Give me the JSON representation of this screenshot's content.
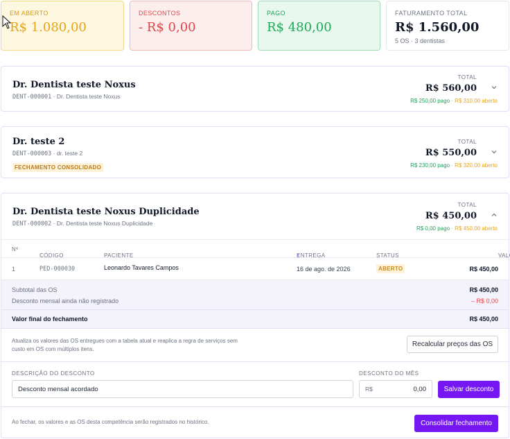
{
  "summary": {
    "open": {
      "label": "EM ABERTO",
      "value": "R$ 1.080,00"
    },
    "discounts": {
      "label": "DESCONTOS",
      "value": "- R$ 0,00"
    },
    "paid": {
      "label": "PAGO",
      "value": "R$ 480,00"
    },
    "total": {
      "label": "FATURAMENTO TOTAL",
      "value": "R$ 1.560,00",
      "sub": "5 OS · 3 dentistas"
    }
  },
  "dentists": [
    {
      "name": "Dr. Dentista teste Noxus",
      "code": "DENT-000001",
      "subname": "· Dr. Dentista teste Noxus",
      "total_label": "TOTAL",
      "total": "R$ 560,00",
      "paid": "R$ 250,00 pago",
      "sep": "·",
      "open": "R$ 310,00 aberto"
    },
    {
      "name": "Dr. teste 2",
      "code": "DENT-000003",
      "subname": "· dr. teste 2",
      "badge": "FECHAMENTO CONSOLIDADO",
      "total_label": "TOTAL",
      "total": "R$ 550,00",
      "paid": "R$ 230,00 pago",
      "sep": "·",
      "open": "R$ 320,00 aberto"
    },
    {
      "name": "Dr. Dentista teste Noxus Duplicidade",
      "code": "DENT-000002",
      "subname": "· Dr. Dentista teste Noxus Duplicidade",
      "total_label": "TOTAL",
      "total": "R$ 450,00",
      "paid": "R$ 0,00 pago",
      "sep": "·",
      "open": "R$ 450,00 aberto"
    }
  ],
  "table": {
    "columns": {
      "num": "Nº",
      "code": "CÓDIGO",
      "patient": "PACIENTE",
      "delivery": "ENTREGA",
      "status": "STATUS",
      "value": "VALOR"
    },
    "rows": [
      {
        "num": "1",
        "code": "PED-000030",
        "patient": "Leonardo Tavares Campos",
        "delivery": "16 de ago. de 2026",
        "status": "ABERTO",
        "value": "R$ 450,00"
      }
    ]
  },
  "sums": {
    "subtotal_label": "Subtotal das OS",
    "subtotal": "R$ 450,00",
    "discount_label": "Desconto mensal ainda não registrado",
    "discount": "– R$ 0,00",
    "final_label": "Valor final do fechamento",
    "final": "R$ 450,00"
  },
  "recalc": {
    "text": "Atualiza os valores das OS entregues com a tabela atual e reaplica a regra de serviços sem custo em OS com múltiplos itens.",
    "button": "Recalcular preços das OS"
  },
  "discount_form": {
    "desc_label": "DESCRIÇÃO DO DESCONTO",
    "desc_value": "Desconto mensal acordado",
    "amount_label": "DESCONTO DO MÊS",
    "currency": "R$",
    "amount_value": "0,00",
    "save_button": "Salvar desconto"
  },
  "footer": {
    "text": "Ao fechar, os valores e as OS desta competência serão registrados no histórico.",
    "button": "Consolidar fechamento"
  },
  "colors": {
    "accent": "#7417f2",
    "open": "#e8a31c",
    "discount": "#e24545",
    "paid": "#1eaa58"
  }
}
